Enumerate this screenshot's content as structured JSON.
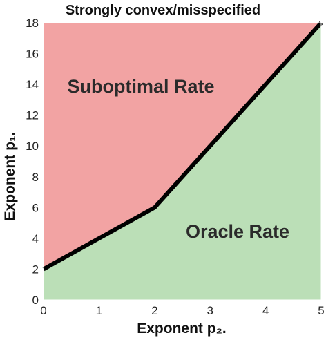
{
  "chart_data": {
    "type": "area",
    "title": "Strongly convex/misspecified",
    "xlabel": "Exponent p₂.",
    "ylabel": "Exponent p₁.",
    "xlim": [
      0,
      5
    ],
    "ylim": [
      0,
      18
    ],
    "x_ticks": [
      "0",
      "1",
      "2",
      "3",
      "4",
      "5"
    ],
    "y_ticks": [
      "0",
      "2",
      "4",
      "6",
      "8",
      "10",
      "12",
      "14",
      "16",
      "18"
    ],
    "boundary": {
      "x": [
        0,
        2,
        5
      ],
      "y": [
        2,
        6,
        18
      ]
    },
    "regions": [
      {
        "name": "Suboptimal Rate",
        "side": "above",
        "color": "#f2a3a3"
      },
      {
        "name": "Oracle Rate",
        "side": "below",
        "color": "#bbdfb7"
      }
    ],
    "annotations": [
      "Suboptimal Rate",
      "Oracle Rate"
    ],
    "grid": false,
    "legend": "none"
  }
}
